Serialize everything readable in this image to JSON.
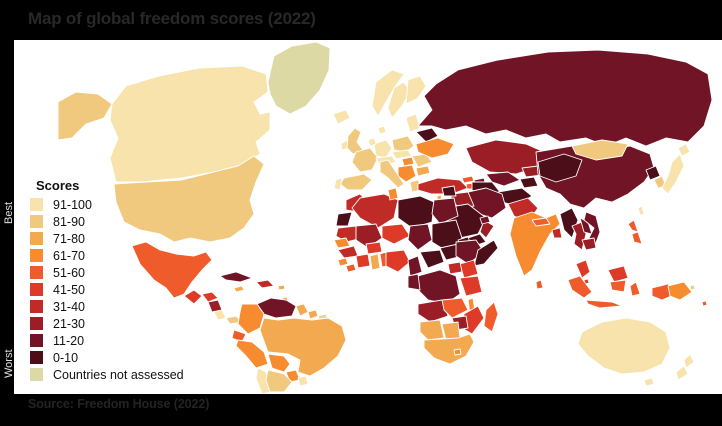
{
  "page": {
    "background": "#000000",
    "panel_background": "#FFFFFF"
  },
  "title": {
    "text": "Map of global freedom scores (2022)",
    "color": "#282828"
  },
  "source": {
    "text": "Source: Freedom House (2022)",
    "color": "#232323"
  },
  "legend": {
    "title": "Scores",
    "best_label": "Best",
    "worst_label": "Worst",
    "text_color": "#111111",
    "side_label_color": "#E2E2E2",
    "buckets": [
      {
        "label": "91-100",
        "color": "#F7E3AB"
      },
      {
        "label": "81-90",
        "color": "#F1C97E"
      },
      {
        "label": "71-80",
        "color": "#F3A94F"
      },
      {
        "label": "61-70",
        "color": "#F78B2F"
      },
      {
        "label": "51-60",
        "color": "#EF5B2B"
      },
      {
        "label": "41-50",
        "color": "#DD3A27"
      },
      {
        "label": "31-40",
        "color": "#C12B27"
      },
      {
        "label": "21-30",
        "color": "#9B1D26"
      },
      {
        "label": "11-20",
        "color": "#711425"
      },
      {
        "label": "0-10",
        "color": "#4C0E19"
      }
    ],
    "not_assessed": {
      "label": "Countries not assessed",
      "color": "#DCD9A5"
    }
  },
  "map": {
    "border_color": "#FFFFFF",
    "regions": {
      "alaska": "81-90",
      "canada": "91-100",
      "greenland": "Countries not assessed",
      "iceland": "91-100",
      "usa": "81-90",
      "mexico": "51-60",
      "guatemala": "41-50",
      "honduras": "41-50",
      "nicaragua": "21-30",
      "costa-rica": "91-100",
      "panama": "81-90",
      "cuba": "11-20",
      "jamaica": "71-80",
      "hispaniola": "31-40",
      "caribbean": "71-80",
      "trinidad": "71-80",
      "venezuela": "11-20",
      "colombia": "61-70",
      "guyana": "71-80",
      "suriname": "71-80",
      "french-guiana": "Countries not assessed",
      "ecuador": "51-60",
      "peru": "61-70",
      "brazil": "71-80",
      "bolivia": "61-70",
      "paraguay": "61-70",
      "uruguay": "91-100",
      "chile": "91-100",
      "argentina": "81-90",
      "ireland": "91-100",
      "uk": "81-90",
      "norway": "91-100",
      "sweden": "91-100",
      "finland": "91-100",
      "denmark": "91-100",
      "baltics": "91-100",
      "belarus": "0-10",
      "poland": "81-90",
      "germany": "91-100",
      "benelux": "91-100",
      "france": "81-90",
      "alpine": "91-100",
      "czech-slovakia": "91-100",
      "hungary": "61-70",
      "romania": "81-90",
      "ukraine": "61-70",
      "balkans": "61-70",
      "bulgaria": "71-80",
      "greece": "81-90",
      "italy": "81-90",
      "spain": "81-90",
      "portugal": "91-100",
      "russia": "11-20",
      "turkey": "31-40",
      "georgia": "51-60",
      "azerbaijan": "11-20",
      "armenia": "51-60",
      "kazakhstan": "21-30",
      "uzbekistan": "11-20",
      "turkmenistan": "0-10",
      "kyrgyzstan": "21-30",
      "tajikistan": "0-10",
      "afghanistan": "0-10",
      "pakistan": "31-40",
      "iran": "11-20",
      "iraq": "21-30",
      "syria": "0-10",
      "jordan": "31-40",
      "israel": "71-80",
      "saudi-arabia": "0-10",
      "yemen": "0-10",
      "oman": "21-30",
      "uae": "11-20",
      "india": "61-70",
      "nepal": "51-60",
      "bangladesh": "31-40",
      "sri-lanka": "51-60",
      "myanmar": "0-10",
      "thailand": "21-30",
      "laos": "11-20",
      "vietnam": "11-20",
      "cambodia": "21-30",
      "malaysia": "41-50",
      "singapore": "41-50",
      "borneo-malaysia": "41-50",
      "sumatra": "51-60",
      "java": "51-60",
      "borneo-indonesia": "51-60",
      "sulawesi": "51-60",
      "west-papua": "51-60",
      "papua-new-guinea": "61-70",
      "philippines": "51-60",
      "philippines-south": "51-60",
      "china": "11-20",
      "western-china": "0-10",
      "mongolia": "81-90",
      "north-korea": "0-10",
      "south-korea": "81-90",
      "japan": "91-100",
      "hokkaido": "91-100",
      "taiwan": "91-100",
      "morocco": "31-40",
      "western-sahara": "0-10",
      "algeria": "31-40",
      "tunisia": "61-70",
      "libya": "0-10",
      "egypt": "11-20",
      "mauritania": "31-40",
      "mali": "21-30",
      "niger": "41-50",
      "chad": "11-20",
      "sudan": "0-10",
      "eritrea": "0-10",
      "senegal": "61-70",
      "guinea": "31-40",
      "sierra-leone": "61-70",
      "liberia": "51-60",
      "ivory-coast": "41-50",
      "ghana": "71-80",
      "burkina-faso": "41-50",
      "benin-togo": "51-60",
      "nigeria": "41-50",
      "cameroon": "11-20",
      "car": "0-10",
      "south-sudan": "0-10",
      "ethiopia": "11-20",
      "somalia": "0-10",
      "kenya": "41-50",
      "uganda": "31-40",
      "drc": "11-20",
      "congo-gabon": "11-20",
      "tanzania": "41-50",
      "angola": "21-30",
      "zambia": "51-60",
      "malawi": "61-70",
      "mozambique": "41-50",
      "zimbabwe": "21-30",
      "namibia": "71-80",
      "botswana": "71-80",
      "south-africa": "71-80",
      "lesotho": "61-70",
      "madagascar": "51-60",
      "australia": "91-100",
      "tasmania": "91-100",
      "new-zealand-north": "91-100",
      "new-zealand-south": "91-100",
      "fiji": "51-60",
      "pacific-island": "81-90"
    }
  }
}
